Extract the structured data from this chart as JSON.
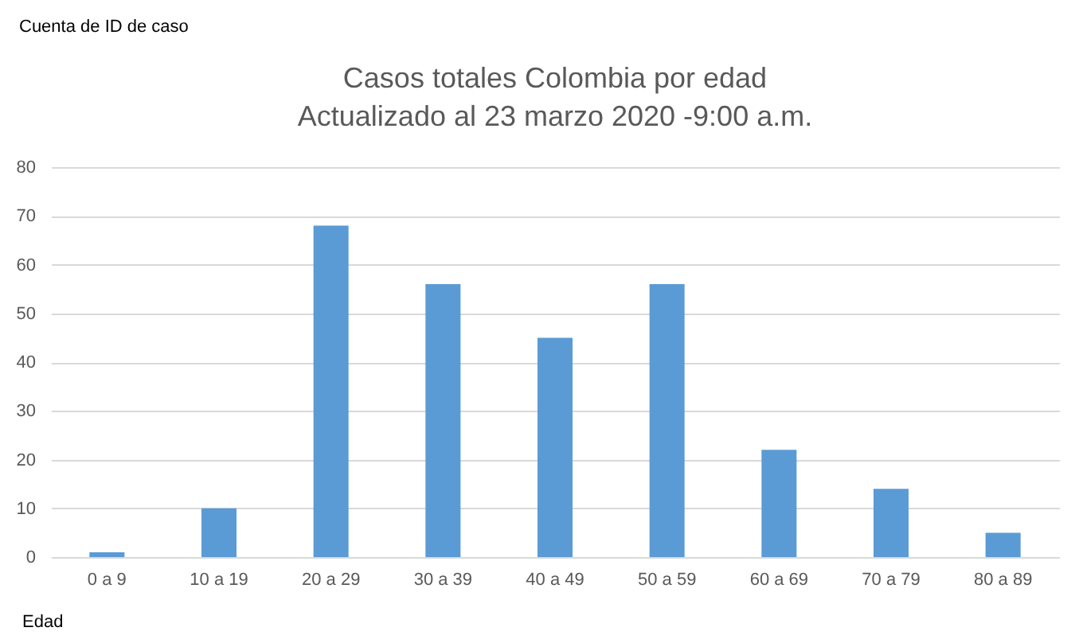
{
  "chart_data": {
    "type": "bar",
    "title": "Casos totales Colombia por edad",
    "subtitle": "Actualizado al 23 marzo 2020 -9:00 a.m.",
    "xlabel": "Edad",
    "annotations": [
      "Cuenta de ID de caso"
    ],
    "categories": [
      "0 a 9",
      "10 a 19",
      "20 a 29",
      "30 a 39",
      "40 a 49",
      "50 a 59",
      "60 a 69",
      "70 a 79",
      "80 a 89"
    ],
    "values": [
      1,
      10,
      68,
      56,
      45,
      56,
      22,
      14,
      5
    ],
    "color": "#5b9bd5",
    "ylim": [
      0,
      80
    ],
    "yticks": [
      0,
      10,
      20,
      30,
      40,
      50,
      60,
      70,
      80
    ],
    "grid": "y"
  }
}
